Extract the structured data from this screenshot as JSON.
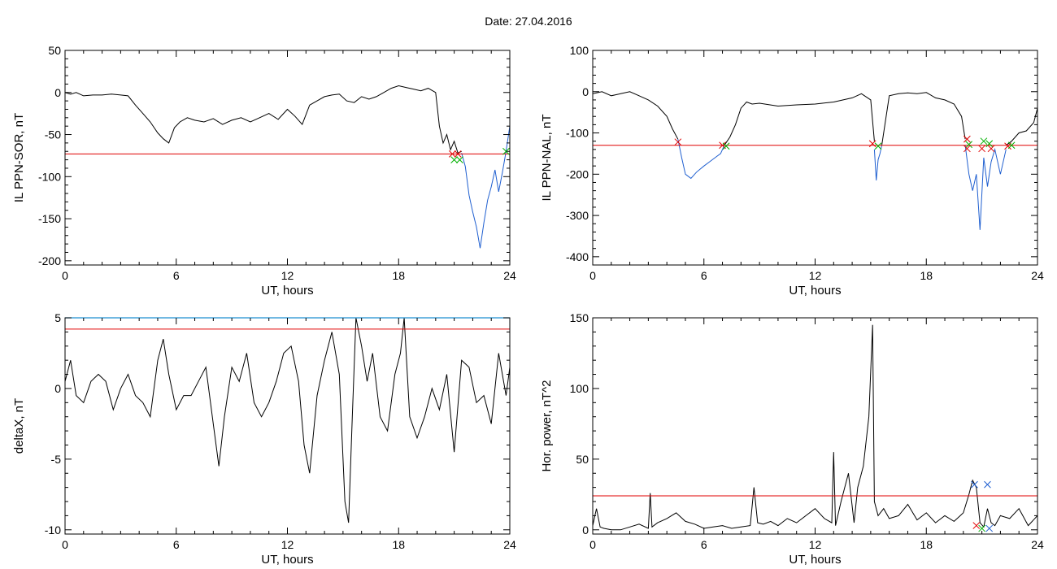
{
  "header": {
    "date_label": "Date:  27.04.2016"
  },
  "chart_data": [
    {
      "id": "p1",
      "type": "line",
      "xlabel": "UT, hours",
      "ylabel": "IL PPN-SOR, nT",
      "xlim": [
        0,
        24
      ],
      "ylim": [
        -205,
        50
      ],
      "xticks": [
        0,
        6,
        12,
        18,
        24
      ],
      "yticks": [
        -200,
        -150,
        -100,
        -50,
        0,
        50
      ],
      "threshold": -73,
      "threshold_color": "#e00000",
      "series": [
        {
          "color": "#000000",
          "x": [
            0,
            0.3,
            0.6,
            1,
            1.5,
            2,
            2.5,
            3,
            3.4,
            3.8,
            4.2,
            4.6,
            5,
            5.3,
            5.6,
            5.9,
            6.2,
            6.6,
            7,
            7.5,
            8,
            8.5,
            9,
            9.5,
            10,
            10.5,
            11,
            11.5,
            12,
            12.4,
            12.8,
            13.2,
            13.6,
            14,
            14.4,
            14.8,
            15.2,
            15.6,
            16,
            16.4,
            16.8,
            17.2,
            17.6,
            18,
            18.4,
            18.8,
            19.2,
            19.6,
            20,
            20.2,
            20.4,
            20.6,
            20.8,
            21,
            21.2,
            21.4
          ],
          "y": [
            0,
            -2,
            0,
            -4,
            -3,
            -3,
            -2,
            -3,
            -4,
            -15,
            -25,
            -35,
            -48,
            -55,
            -60,
            -42,
            -35,
            -30,
            -33,
            -35,
            -31,
            -38,
            -33,
            -30,
            -35,
            -30,
            -25,
            -32,
            -20,
            -28,
            -38,
            -15,
            -10,
            -5,
            -3,
            -2,
            -10,
            -12,
            -5,
            -8,
            -5,
            0,
            5,
            8,
            6,
            4,
            2,
            5,
            0,
            -40,
            -60,
            -50,
            -68,
            -58,
            -72,
            -70
          ]
        },
        {
          "color": "#1f5fd0",
          "x": [
            21.4,
            21.6,
            21.8,
            22,
            22.2,
            22.4,
            22.6,
            22.8,
            23,
            23.2,
            23.4,
            23.6,
            23.8,
            24
          ],
          "y": [
            -72,
            -88,
            -122,
            -142,
            -160,
            -185,
            -155,
            -128,
            -112,
            -92,
            -118,
            -95,
            -70,
            -40
          ]
        }
      ],
      "markers": [
        {
          "x": 20.9,
          "y": -73,
          "color": "#e00000"
        },
        {
          "x": 21.2,
          "y": -73,
          "color": "#e00000"
        },
        {
          "x": 21.0,
          "y": -80,
          "color": "#00b000"
        },
        {
          "x": 21.3,
          "y": -80,
          "color": "#00b000"
        },
        {
          "x": 23.8,
          "y": -70,
          "color": "#00b000"
        }
      ]
    },
    {
      "id": "p2",
      "type": "line",
      "xlabel": "UT, hours",
      "ylabel": "IL PPN-NAL, nT",
      "xlim": [
        0,
        24
      ],
      "ylim": [
        -420,
        100
      ],
      "xticks": [
        0,
        6,
        12,
        18,
        24
      ],
      "yticks": [
        -400,
        -300,
        -200,
        -100,
        0,
        100
      ],
      "threshold": -130,
      "threshold_color": "#e00000",
      "series": [
        {
          "color": "#000000",
          "x": [
            0,
            0.5,
            1,
            1.5,
            2,
            2.5,
            3,
            3.5,
            4,
            4.3,
            4.6
          ],
          "y": [
            -5,
            0,
            -10,
            -5,
            0,
            -10,
            -20,
            -35,
            -60,
            -90,
            -115
          ]
        },
        {
          "color": "#1f5fd0",
          "x": [
            4.6,
            4.8,
            5,
            5.3,
            5.6,
            6,
            6.3,
            6.6,
            6.9,
            7.1
          ],
          "y": [
            -115,
            -160,
            -200,
            -210,
            -195,
            -180,
            -170,
            -160,
            -150,
            -130
          ]
        },
        {
          "color": "#000000",
          "x": [
            7.1,
            7.4,
            7.7,
            8,
            8.3,
            8.6,
            9,
            10,
            11,
            12,
            13,
            14,
            14.5,
            15,
            15.2
          ],
          "y": [
            -130,
            -110,
            -80,
            -40,
            -25,
            -30,
            -28,
            -35,
            -32,
            -30,
            -25,
            -15,
            -5,
            -20,
            -120
          ]
        },
        {
          "color": "#1f5fd0",
          "x": [
            15.2,
            15.3,
            15.4,
            15.5,
            15.6
          ],
          "y": [
            -140,
            -215,
            -165,
            -150,
            -130
          ]
        },
        {
          "color": "#000000",
          "x": [
            15.6,
            16,
            16.5,
            17,
            17.5,
            18,
            18.5,
            19,
            19.5,
            19.9,
            20.1
          ],
          "y": [
            -130,
            -10,
            -5,
            -3,
            -5,
            -2,
            -15,
            -20,
            -30,
            -60,
            -115
          ]
        },
        {
          "color": "#1f5fd0",
          "x": [
            20.1,
            20.3,
            20.5,
            20.7,
            20.9,
            21.1,
            21.3,
            21.5,
            21.7,
            22,
            22.3
          ],
          "y": [
            -130,
            -200,
            -240,
            -200,
            -335,
            -160,
            -230,
            -170,
            -140,
            -200,
            -140
          ]
        },
        {
          "color": "#000000",
          "x": [
            22.3,
            22.6,
            23,
            23.4,
            23.8,
            24
          ],
          "y": [
            -130,
            -120,
            -100,
            -95,
            -75,
            -40
          ]
        }
      ],
      "markers": [
        {
          "x": 4.6,
          "y": -122,
          "color": "#e00000"
        },
        {
          "x": 7.0,
          "y": -130,
          "color": "#e00000"
        },
        {
          "x": 7.2,
          "y": -132,
          "color": "#00b000"
        },
        {
          "x": 15.1,
          "y": -126,
          "color": "#e00000"
        },
        {
          "x": 15.4,
          "y": -132,
          "color": "#00b000"
        },
        {
          "x": 20.2,
          "y": -115,
          "color": "#e00000"
        },
        {
          "x": 20.3,
          "y": -128,
          "color": "#00b000"
        },
        {
          "x": 20.2,
          "y": -138,
          "color": "#e00000"
        },
        {
          "x": 21.0,
          "y": -138,
          "color": "#e00000"
        },
        {
          "x": 21.1,
          "y": -120,
          "color": "#00b000"
        },
        {
          "x": 21.4,
          "y": -126,
          "color": "#00b000"
        },
        {
          "x": 21.5,
          "y": -138,
          "color": "#e00000"
        },
        {
          "x": 22.4,
          "y": -132,
          "color": "#e00000"
        },
        {
          "x": 22.6,
          "y": -130,
          "color": "#00b000"
        }
      ]
    },
    {
      "id": "p3",
      "type": "line",
      "xlabel": "UT, hours",
      "ylabel": "deltaX, nT",
      "xlim": [
        0,
        24
      ],
      "ylim": [
        -10.3,
        5
      ],
      "xticks": [
        0,
        6,
        12,
        18,
        24
      ],
      "yticks": [
        -10,
        -5,
        0,
        5
      ],
      "threshold": 4.2,
      "threshold_color": "#e00000",
      "top_line_color": "#1f8fd0",
      "series": [
        {
          "color": "#000000",
          "x": [
            0,
            0.3,
            0.6,
            1,
            1.4,
            1.8,
            2.2,
            2.6,
            3,
            3.4,
            3.8,
            4.2,
            4.6,
            5,
            5.3,
            5.6,
            6,
            6.4,
            6.8,
            7.2,
            7.6,
            8,
            8.3,
            8.6,
            9,
            9.4,
            9.8,
            10.2,
            10.6,
            11,
            11.4,
            11.8,
            12.2,
            12.6,
            12.9,
            13.2,
            13.6,
            14,
            14.4,
            14.8,
            15.1,
            15.3,
            15.5,
            15.7,
            16,
            16.3,
            16.6,
            17,
            17.4,
            17.8,
            18.1,
            18.3,
            18.6,
            19,
            19.4,
            19.8,
            20.2,
            20.6,
            21,
            21.4,
            21.8,
            22.2,
            22.6,
            23,
            23.4,
            23.8,
            24
          ],
          "y": [
            0.5,
            2,
            -0.5,
            -1,
            0.5,
            1,
            0.5,
            -1.5,
            0,
            1,
            -0.5,
            -1,
            -2,
            2,
            3.5,
            1,
            -1.5,
            -0.5,
            -0.5,
            0.5,
            1.5,
            -2.5,
            -5.5,
            -2,
            1.5,
            0.5,
            2.5,
            -1,
            -2,
            -1,
            0.5,
            2.5,
            3,
            0.5,
            -4,
            -6,
            -0.5,
            2,
            4,
            1,
            -8,
            -9.5,
            -2,
            5,
            3,
            0.5,
            2.5,
            -2,
            -3,
            1,
            2.5,
            5,
            -2,
            -3.5,
            -2,
            0,
            -1.5,
            1,
            -4.5,
            2,
            1.5,
            -1,
            -0.5,
            -2.5,
            2.5,
            -0.5,
            1.5
          ]
        }
      ],
      "markers": []
    },
    {
      "id": "p4",
      "type": "line",
      "xlabel": "UT, hours",
      "ylabel": "Hor. power, nT^2",
      "xlim": [
        0,
        24
      ],
      "ylim": [
        -3,
        150
      ],
      "xticks": [
        0,
        6,
        12,
        18,
        24
      ],
      "yticks": [
        0,
        50,
        100,
        150
      ],
      "threshold": 24,
      "threshold_color": "#e00000",
      "series": [
        {
          "color": "#000000",
          "x": [
            0,
            0.2,
            0.4,
            0.6,
            1,
            1.5,
            2,
            2.5,
            3,
            3.1,
            3.2,
            3.5,
            4,
            4.5,
            5,
            5.5,
            6,
            6.5,
            7,
            7.5,
            8,
            8.5,
            8.7,
            8.9,
            9.2,
            9.6,
            10,
            10.5,
            11,
            11.5,
            12,
            12.5,
            12.9,
            13.0,
            13.1,
            13.4,
            13.8,
            14.1,
            14.3,
            14.6,
            14.9,
            15.1,
            15.2,
            15.4,
            15.7,
            16,
            16.5,
            17,
            17.5,
            18,
            18.5,
            19,
            19.5,
            20,
            20.3,
            20.5,
            20.7,
            20.9,
            21.1,
            21.3,
            21.5,
            21.7,
            22,
            22.5,
            23,
            23.5,
            24
          ],
          "y": [
            3,
            15,
            2,
            1,
            0,
            0,
            2,
            4,
            1,
            26,
            2,
            5,
            8,
            12,
            6,
            4,
            1,
            2,
            3,
            1,
            2,
            3,
            30,
            5,
            4,
            6,
            3,
            8,
            5,
            10,
            15,
            8,
            5,
            55,
            3,
            20,
            40,
            5,
            30,
            45,
            80,
            145,
            20,
            10,
            15,
            8,
            10,
            18,
            7,
            12,
            5,
            10,
            6,
            12,
            25,
            35,
            30,
            5,
            2,
            15,
            5,
            3,
            10,
            8,
            15,
            3,
            10
          ]
        }
      ],
      "markers": [
        {
          "x": 20.6,
          "y": 32,
          "color": "#1f5fd0"
        },
        {
          "x": 21.3,
          "y": 32,
          "color": "#1f5fd0"
        },
        {
          "x": 20.7,
          "y": 3,
          "color": "#e00000"
        },
        {
          "x": 21.0,
          "y": 1,
          "color": "#00b000"
        },
        {
          "x": 21.4,
          "y": 1,
          "color": "#1f5fd0"
        }
      ]
    }
  ]
}
